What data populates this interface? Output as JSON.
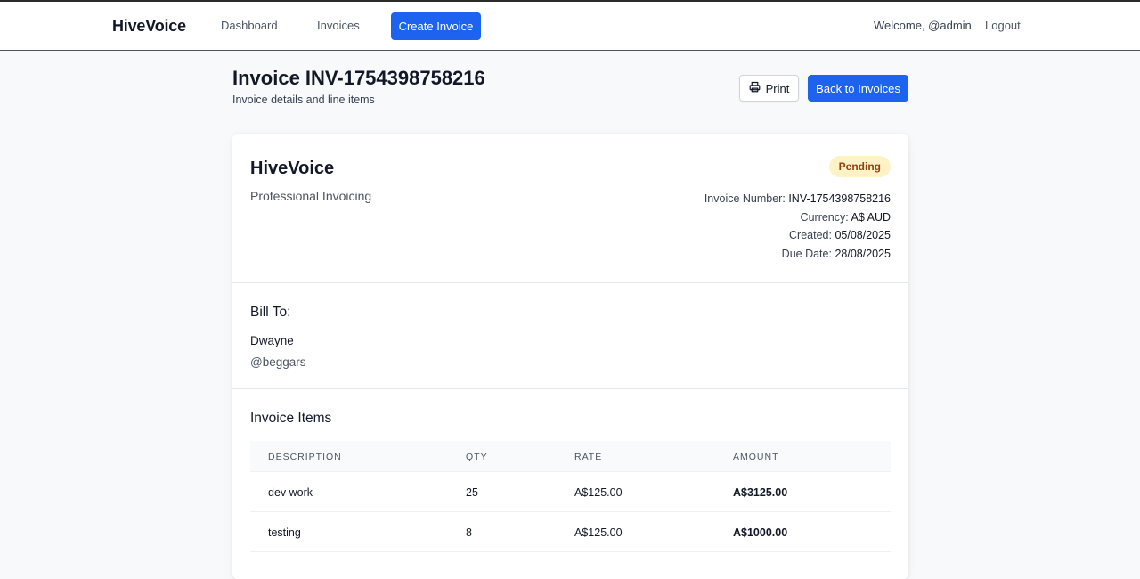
{
  "nav": {
    "brand": "HiveVoice",
    "dashboard": "Dashboard",
    "invoices": "Invoices",
    "create": "Create Invoice",
    "welcome": "Welcome, @admin",
    "logout": "Logout"
  },
  "header": {
    "title": "Invoice INV-1754398758216",
    "subtitle": "Invoice details and line items",
    "print_label": "Print",
    "print_icon": "printer-icon",
    "back_label": "Back to Invoices"
  },
  "invoice": {
    "company": "HiveVoice",
    "tagline": "Professional Invoicing",
    "status": "Pending",
    "status_color": "#fef3c7",
    "meta": {
      "number_label": "Invoice Number:",
      "number": "INV-1754398758216",
      "currency_label": "Currency:",
      "currency": "A$ AUD",
      "created_label": "Created:",
      "created": "05/08/2025",
      "due_label": "Due Date:",
      "due": "28/08/2025"
    },
    "bill_to": {
      "heading": "Bill To:",
      "name": "Dwayne",
      "handle": "@beggars"
    },
    "items": {
      "heading": "Invoice Items",
      "columns": [
        "DESCRIPTION",
        "QTY",
        "RATE",
        "AMOUNT"
      ],
      "rows": [
        [
          "dev work",
          "25",
          "A$125.00",
          "A$3125.00"
        ],
        [
          "testing",
          "8",
          "A$125.00",
          "A$1000.00"
        ]
      ]
    }
  },
  "colors": {
    "accent": "#1d63f0",
    "badge_text": "#92400e"
  }
}
